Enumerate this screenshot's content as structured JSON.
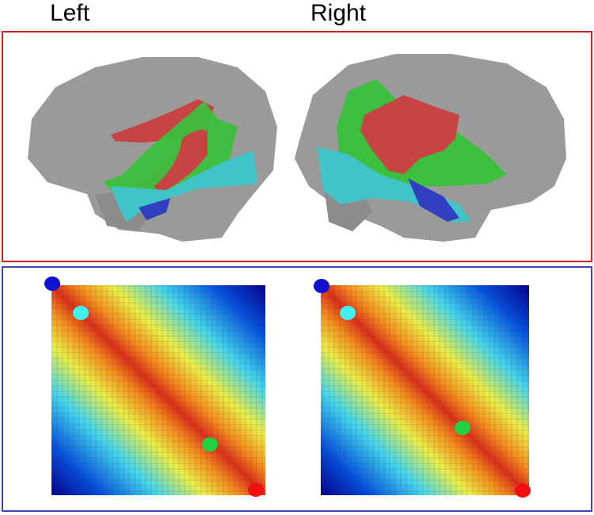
{
  "labels": {
    "left": "Left",
    "right": "Right"
  }
}
